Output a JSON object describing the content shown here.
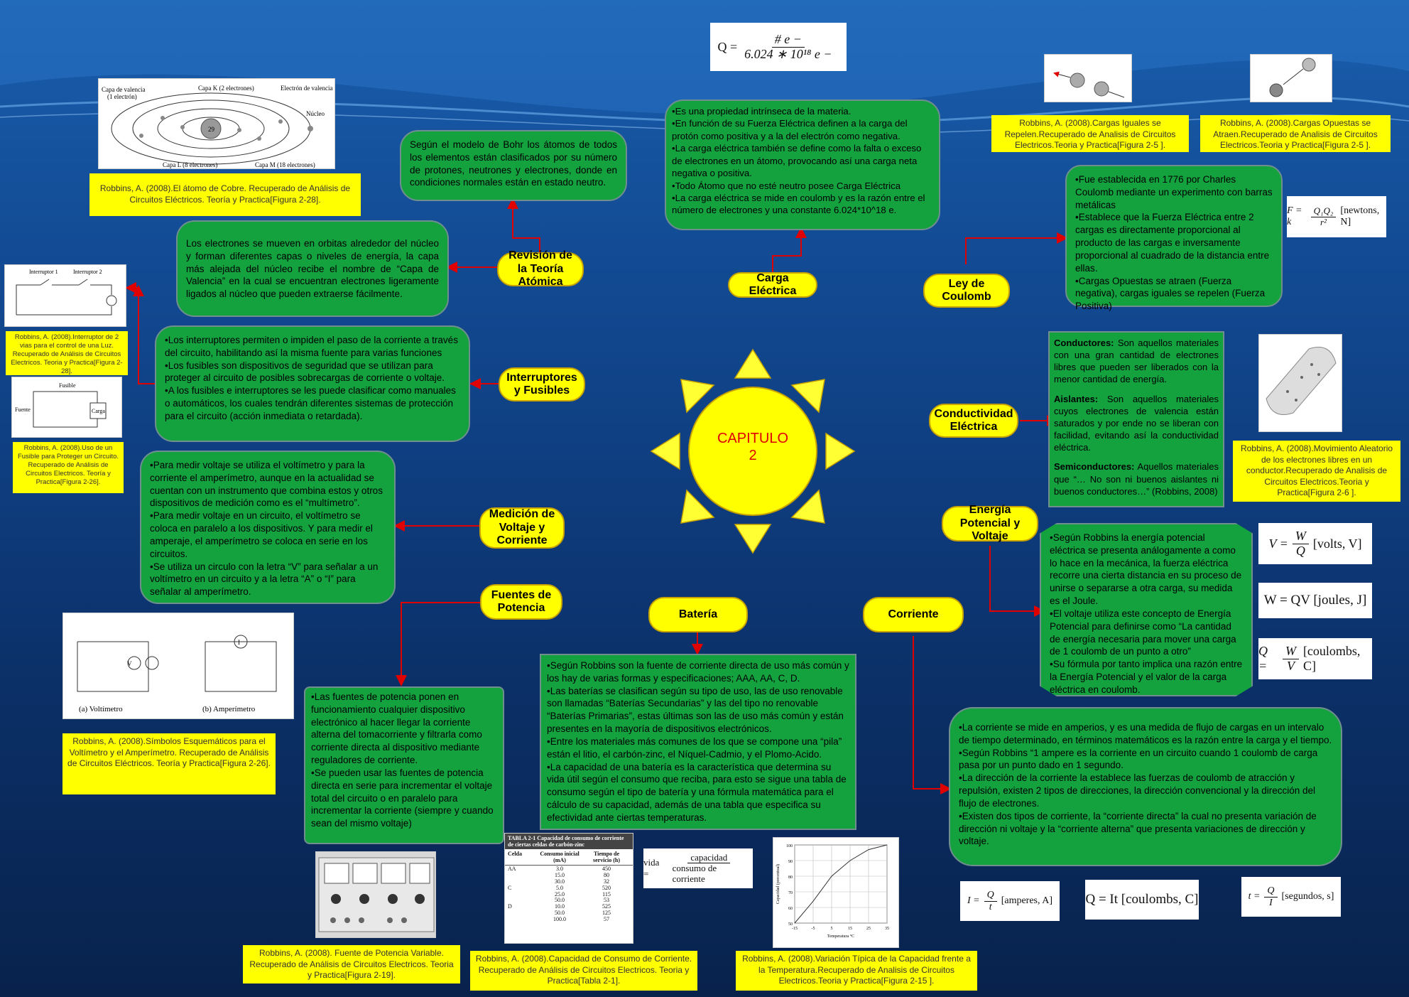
{
  "center": {
    "line1": "CAPITULO",
    "line2": "2"
  },
  "nodes": {
    "teoria": "Revisión de la Teoría Atómica",
    "carga": "Carga Eléctrica",
    "coulomb": "Ley de Coulomb",
    "interruptores": "Interruptores y Fusibles",
    "conductividad": "Conductividad Eléctrica",
    "medicion": "Medición de Voltaje y Corriente",
    "energia": "Energía Potencial y Voltaje",
    "fuentes": "Fuentes de Potencia",
    "bateria": "Batería",
    "corriente": "Corriente"
  },
  "boxes": {
    "bohr": "Según el modelo de Bohr los átomos de todos los elementos están clasificados por su número de protones, neutrones y electrones, donde en condiciones normales están en estado neutro.",
    "electrones": "Los electrones se mueven en orbitas alrededor del núcleo y forman diferentes capas o niveles de energía, la capa más alejada del núcleo recibe el nombre de “Capa de Valencia” en la cual se encuentran electrones ligeramente ligados al núcleo que pueden extraerse fácilmente.",
    "carga": [
      "•Es una propiedad intrínseca de la materia.",
      "•En función de su Fuerza Eléctrica definen a la carga del protón como positiva y a la del electrón como negativa.",
      "•La carga eléctrica también se define como la falta o exceso de electrones en un átomo, provocando así una carga neta negativa o positiva.",
      "•Todo Átomo que no esté neutro posee Carga Eléctrica",
      "•La carga eléctrica se mide en coulomb y es la razón entre el número de electrones y una constante 6.024*10^18 e."
    ],
    "coulomb": [
      "•Fue establecida en 1776 por Charles Coulomb mediante un experimento con barras metálicas",
      "•Establece que la Fuerza Eléctrica entre 2 cargas es directamente proporcional al producto de las cargas e inversamente proporcional al cuadrado de la distancia entre ellas.",
      "•Cargas Opuestas se atraen (Fuerza negativa), cargas iguales se repelen (Fuerza Positiva)"
    ],
    "interruptores": [
      "•Los interruptores permiten o impiden el paso de la corriente a través del circuito, habilitando así la misma fuente para varias funciones",
      "•Los fusibles son dispositivos de seguridad que se utilizan para proteger al circuito de posibles sobrecargas de corriente o voltaje.",
      "•A los fusibles e interruptores se les puede clasificar como manuales o automáticos, los cuales tendrán diferentes sistemas de protección para el circuito (acción inmediata o retardada)."
    ],
    "conductividad": {
      "conductores_t": "Conductores:",
      "conductores": " Son aquellos materiales con una gran cantidad de electrones libres que pueden ser liberados con la menor cantidad de energía.",
      "aislantes_t": "Aislantes:",
      "aislantes": " Son aquellos materiales cuyos electrones de valencia están saturados y por ende no se liberan con facilidad, evitando así la conductividad eléctrica.",
      "semi_t": "Semiconductores:",
      "semi": " Aquellos materiales que “… No son ni buenos aislantes ni buenos conductores…” (Robbins, 2008)"
    },
    "medicion": [
      "•Para medir voltaje se utiliza el voltímetro y para la corriente el amperímetro, aunque en la actualidad se cuentan con un instrumento que combina estos y otros dispositivos de medición como es el “multímetro”.",
      "•Para medir voltaje en un circuito, el voltímetro se coloca en paralelo a los dispositivos. Y para medir el amperaje, el amperímetro se coloca en serie en los circuitos.",
      "•Se utiliza un circulo con la letra “V” para señalar a un voltímetro en un circuito y a la letra “A” o “I” para señalar al amperímetro."
    ],
    "energia": [
      "•Según Robbins la energía potencial eléctrica se presenta análogamente a como lo hace en la mecánica, la fuerza eléctrica recorre una cierta distancia en su proceso de unirse o separarse a otra carga, su medida es el Joule.",
      "•El voltaje utiliza este concepto de Energía Potencial para definirse como “La cantidad de energía necesaria para mover una carga de 1 coulomb de un punto a otro”",
      "•Su fórmula por tanto implica una razón entre la Energía Potencial y el valor de la carga eléctrica en coulomb."
    ],
    "fuentes": [
      "•Las fuentes de potencia ponen en funcionamiento cualquier dispositivo electrónico al hacer llegar la corriente alterna del tomacorriente y filtrarla como corriente directa al dispositivo mediante reguladores de corriente.",
      "•Se pueden usar las fuentes de potencia directa en serie para incrementar el voltaje total del circuito o en paralelo para incrementar la corriente (siempre y cuando sean del mismo voltaje)"
    ],
    "bateria": [
      "•Según Robbins son la fuente de corriente directa de uso más común y los hay de varias formas y especificaciones; AAA, AA, C, D.",
      "•Las baterías se clasifican según su tipo de uso, las de uso renovable son llamadas “Baterías Secundarias” y las del tipo no renovable “Baterías Primarias”, estas últimas son las de uso más común y están presentes en la mayoría de dispositivos electrónicos.",
      "•Entre los materiales más comunes de los que se compone una “pila” están el litio, el carbón-zinc, el Níquel-Cadmio, y el Plomo-Acido.",
      "•La capacidad de una batería es la característica que determina su vida útil según el consumo que reciba, para esto se sigue una tabla de consumo según el tipo de batería y una fórmula matemática para el cálculo de su capacidad, además de una tabla que especifica su efectividad ante ciertas temperaturas."
    ],
    "corriente": [
      "•La corriente se mide en amperios, y es una medida de flujo de cargas en un intervalo de tiempo determinado, en términos matemáticos es la razón entre la carga y el tiempo.",
      "•Según Robbins “1 ampere es la corriente en un circuito cuando 1 coulomb de carga pasa por un punto dado en 1 segundo.",
      "•La dirección de la corriente la establece las fuerzas de coulomb de atracción y repulsión, existen 2 tipos de direcciones, la dirección convencional y la dirección del flujo de electrones.",
      "•Existen dos tipos de corriente, la “corriente directa” la cual no presenta variación de dirección ni voltaje y la “corriente alterna” que presenta variaciones de dirección y voltaje."
    ]
  },
  "captions": {
    "atomo": "Robbins, A. (2008).El átomo de Cobre. Recuperado de Análisis de Circuitos Eléctricos. Teoría y Practica[Figura 2-28].",
    "iguales": "Robbins, A. (2008).Cargas Iguales se Repelen.Recuperado de  Analisis de Circuitos Electricos.Teoria y Practica[Figura 2-5 ].",
    "opuestas": "Robbins, A. (2008).Cargas Opuestas se Atraen.Recuperado de  Analisis de Circuitos Electricos.Teoria y Practica[Figura 2-5 ].",
    "interruptor": "Robbins, A. (2008).Interruptor de 2 vias para el control de una Luz. Recuperado de Análisis de Circuitos Electricos. Teoria y Practica[Figura 2-28].",
    "fusible": "Robbins, A. (2008).Uso de un Fusible para Proteger un Circuito. Recuperado de Análisis de Circuitos Electricos. Teoría y Practica[Figura 2-26].",
    "movimiento": "Robbins, A. (2008).Movimiento Aleatorio de los electrones libres en un conductor.Recuperado de  Analisis de Circuitos Electricos.Teoria y Practica[Figura 2-6 ].",
    "simbolos": "Robbins, A. (2008).Símbolos Esquemáticos para el Voltímetro y el Amperímetro. Recuperado de Análisis de Circuitos Eléctricos. Teoría y Practica[Figura 2-26].",
    "fuente": "Robbins, A. (2008). Fuente de Potencia Variable. Recuperado de Análisis de Circuitos Electricos. Teoria y Practica[Figura 2-19].",
    "capacidad": "Robbins, A. (2008).Capacidad de Consumo de Corriente. Recuperado de Análisis de Circuitos Electricos. Teoria y Practica[Tabla 2-1].",
    "variacion": "Robbins, A. (2008).Variación Típica de la Capacidad frente a la Temperatura.Recuperado de  Analisis de Circuitos Electricos.Teoria y Practica[Figura 2-15 ]."
  },
  "formulas": {
    "q_num": "# e −",
    "q_den": "6.024 ∗ 10¹⁸ e −",
    "q_lhs": "Q =",
    "coulomb": "[newtons, N]",
    "v_unit": "[volts, V]",
    "w_eq": "W = QV   [joules, J]",
    "q_unit": "[coulombs, C]",
    "i_unit": "[amperes, A]",
    "q_it": "Q = It [coulombs, C]",
    "t_unit": "[segundos, s]",
    "vida_lhs": "vida =",
    "vida_num": "capacidad",
    "vida_den": "consumo de corriente"
  },
  "figure_labels": {
    "capa_valencia": "Capa de valencia",
    "un_electron": "(1 electrón)",
    "capa_k": "Capa K (2 electrones)",
    "electron_val": "Electrón de valencia",
    "nucleo": "Núcleo",
    "capa_l": "Capa L (8 electrones)",
    "capa_m": "Capa M (18 electrones)",
    "atomic_num": "29",
    "interruptor1": "Interruptor 1",
    "interruptor2": "Interruptor 2",
    "fusible": "Fusible",
    "fuente": "Fuente",
    "carga": "Carga",
    "voltimetro": "(a) Voltímetro",
    "amperimetro": "(b) Amperímetro"
  },
  "table": {
    "title": "TABLA 2-1   Capacidad de consumo de corriente de ciertas celdas de carbón-zinc",
    "headers": [
      "Celda",
      "Consumo inicial (mA)",
      "Tiempo de servicio (h)"
    ],
    "rows": [
      [
        "AA",
        "3.0",
        "450"
      ],
      [
        "",
        "15.0",
        "80"
      ],
      [
        "",
        "30.0",
        "32"
      ],
      [
        "C",
        "5.0",
        "520"
      ],
      [
        "",
        "25.0",
        "115"
      ],
      [
        "",
        "50.0",
        "53"
      ],
      [
        "D",
        "10.0",
        "525"
      ],
      [
        "",
        "50.0",
        "125"
      ],
      [
        "",
        "100.0",
        "57"
      ]
    ]
  },
  "chart_data": {
    "type": "line",
    "x": [
      -15,
      -5,
      5,
      15,
      25,
      35
    ],
    "values": [
      40,
      64,
      80,
      90,
      97,
      100
    ],
    "xlabel": "Temperatura °C",
    "ylabel": "Capacidad (porcentual)",
    "xlim": [
      -15,
      35
    ],
    "ylim": [
      50,
      100
    ],
    "yticks": [
      100,
      90,
      80,
      70,
      60,
      50
    ],
    "grid": true
  },
  "colors": {
    "node": "#ffff00",
    "box": "#14a23f",
    "arrow": "#e00000",
    "title": "#e00000"
  }
}
